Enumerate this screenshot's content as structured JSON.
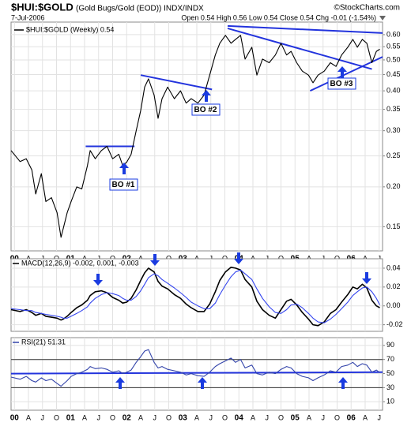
{
  "chart_data": [
    {
      "type": "line",
      "title": "$HUI:$GOLD",
      "subtitle": "(Gold Bugs/Gold (EOD)) INDX/INDX",
      "source": "©StockCharts.com",
      "date": "7-Jul-2006",
      "quote": "Open 0.54 High 0.56 Low 0.54 Close 0.54 Chg -0.01 (-1.54%)",
      "log_scale": true,
      "grid": true,
      "xlim": [
        1999.94,
        2006.56
      ],
      "ylim": [
        0.126,
        0.657
      ],
      "xticks": [
        {
          "value": 2000,
          "label": "00"
        },
        {
          "value": 2000.25,
          "label": "A"
        },
        {
          "value": 2000.5,
          "label": "J"
        },
        {
          "value": 2000.75,
          "label": "O"
        },
        {
          "value": 2001,
          "label": "01"
        },
        {
          "value": 2001.25,
          "label": "A"
        },
        {
          "value": 2001.5,
          "label": "J"
        },
        {
          "value": 2001.75,
          "label": "O"
        },
        {
          "value": 2002,
          "label": "02"
        },
        {
          "value": 2002.25,
          "label": "A"
        },
        {
          "value": 2002.5,
          "label": "J"
        },
        {
          "value": 2002.75,
          "label": "O"
        },
        {
          "value": 2003,
          "label": "03"
        },
        {
          "value": 2003.25,
          "label": "A"
        },
        {
          "value": 2003.5,
          "label": "J"
        },
        {
          "value": 2003.75,
          "label": "O"
        },
        {
          "value": 2004,
          "label": "04"
        },
        {
          "value": 2004.25,
          "label": "A"
        },
        {
          "value": 2004.5,
          "label": "J"
        },
        {
          "value": 2004.75,
          "label": "O"
        },
        {
          "value": 2005,
          "label": "05"
        },
        {
          "value": 2005.25,
          "label": "A"
        },
        {
          "value": 2005.5,
          "label": "J"
        },
        {
          "value": 2005.75,
          "label": "O"
        },
        {
          "value": 2006,
          "label": "06"
        },
        {
          "value": 2006.25,
          "label": "A"
        },
        {
          "value": 2006.5,
          "label": "J"
        }
      ],
      "yticks": [
        {
          "value": 0.6,
          "label": "0.60"
        },
        0.55,
        {
          "value": 0.5,
          "label": "0.50"
        },
        0.45,
        {
          "value": 0.4,
          "label": "0.40"
        },
        0.35,
        {
          "value": 0.3,
          "label": "0.30"
        },
        0.25,
        {
          "value": 0.2,
          "label": "0.20"
        },
        0.15
      ],
      "x": [
        1999.94,
        2000.1,
        2000.21,
        2000.31,
        2000.38,
        2000.48,
        2000.56,
        2000.66,
        2000.76,
        2000.83,
        2000.87,
        2000.94,
        2001.01,
        2001.11,
        2001.2,
        2001.3,
        2001.35,
        2001.44,
        2001.55,
        2001.65,
        2001.75,
        2001.86,
        2001.93,
        2002.0,
        2002.08,
        2002.17,
        2002.25,
        2002.32,
        2002.39,
        2002.49,
        2002.56,
        2002.63,
        2002.73,
        2002.85,
        2002.96,
        2003.06,
        2003.15,
        2003.27,
        2003.38,
        2003.48,
        2003.58,
        2003.66,
        2003.76,
        2003.86,
        2003.94,
        2004.03,
        2004.11,
        2004.23,
        2004.32,
        2004.42,
        2004.54,
        2004.65,
        2004.75,
        2004.85,
        2004.93,
        2005.03,
        2005.13,
        2005.24,
        2005.32,
        2005.41,
        2005.52,
        2005.63,
        2005.73,
        2005.83,
        2005.94,
        2006.03,
        2006.11,
        2006.2,
        2006.28,
        2006.37,
        2006.45,
        2006.51
      ],
      "series": [
        {
          "name": "$HUI:$GOLD (Weekly) 0.54",
          "color": "#000000",
          "values": [
            0.26,
            0.24,
            0.245,
            0.226,
            0.19,
            0.22,
            0.18,
            0.185,
            0.166,
            0.139,
            0.148,
            0.166,
            0.18,
            0.2,
            0.197,
            0.233,
            0.26,
            0.245,
            0.26,
            0.268,
            0.245,
            0.253,
            0.233,
            0.239,
            0.253,
            0.3,
            0.347,
            0.411,
            0.436,
            0.388,
            0.328,
            0.378,
            0.411,
            0.378,
            0.4,
            0.366,
            0.378,
            0.366,
            0.388,
            0.448,
            0.518,
            0.564,
            0.597,
            0.564,
            0.58,
            0.597,
            0.503,
            0.548,
            0.448,
            0.503,
            0.49,
            0.518,
            0.564,
            0.518,
            0.532,
            0.49,
            0.461,
            0.448,
            0.424,
            0.448,
            0.461,
            0.49,
            0.477,
            0.518,
            0.548,
            0.58,
            0.548,
            0.58,
            0.564,
            0.49,
            0.532,
            0.54
          ]
        }
      ],
      "trendlines": [
        {
          "color": "#2233dd",
          "x": [
            2001.27,
            2002.14
          ],
          "y": [
            0.268,
            0.268
          ]
        },
        {
          "color": "#2233dd",
          "x": [
            2002.25,
            2003.52
          ],
          "y": [
            0.448,
            0.404
          ]
        },
        {
          "color": "#2233dd",
          "x": [
            2003.8,
            2006.56
          ],
          "y": [
            0.639,
            0.607
          ]
        },
        {
          "color": "#2233dd",
          "x": [
            2003.8,
            2006.37
          ],
          "y": [
            0.628,
            0.468
          ]
        },
        {
          "color": "#2233dd",
          "x": [
            2005.27,
            2006.56
          ],
          "y": [
            0.4,
            0.511
          ]
        }
      ],
      "annotations": [
        "BO #1",
        "BO #2",
        "BO #3"
      ]
    },
    {
      "type": "line",
      "title": "MACD(12,26,9) -0.002, 0.001, -0.003",
      "grid": true,
      "xlim": [
        1999.94,
        2006.56
      ],
      "ylim": [
        -0.027,
        0.05
      ],
      "yticks": [
        0.04,
        0.02,
        {
          "value": 0,
          "label": "0.00"
        },
        -0.02
      ],
      "x": [
        1999.94,
        2000.1,
        2000.21,
        2000.31,
        2000.38,
        2000.48,
        2000.56,
        2000.66,
        2000.76,
        2000.83,
        2000.87,
        2000.94,
        2001.01,
        2001.11,
        2001.2,
        2001.3,
        2001.35,
        2001.44,
        2001.55,
        2001.65,
        2001.75,
        2001.86,
        2001.93,
        2002.0,
        2002.08,
        2002.17,
        2002.25,
        2002.32,
        2002.39,
        2002.49,
        2002.56,
        2002.63,
        2002.73,
        2002.85,
        2002.96,
        2003.06,
        2003.15,
        2003.27,
        2003.38,
        2003.48,
        2003.58,
        2003.66,
        2003.76,
        2003.86,
        2003.94,
        2004.03,
        2004.11,
        2004.23,
        2004.32,
        2004.42,
        2004.54,
        2004.65,
        2004.75,
        2004.85,
        2004.93,
        2005.03,
        2005.13,
        2005.24,
        2005.32,
        2005.41,
        2005.52,
        2005.63,
        2005.73,
        2005.83,
        2005.94,
        2006.03,
        2006.11,
        2006.2,
        2006.28,
        2006.37,
        2006.45,
        2006.51
      ],
      "series": [
        {
          "color": "#000000",
          "values": [
            -0.004,
            -0.006,
            -0.004,
            -0.007,
            -0.01,
            -0.008,
            -0.011,
            -0.012,
            -0.013,
            -0.015,
            -0.014,
            -0.011,
            -0.007,
            -0.002,
            0.001,
            0.006,
            0.011,
            0.015,
            0.016,
            0.014,
            0.009,
            0.006,
            0.003,
            0.004,
            0.008,
            0.017,
            0.027,
            0.035,
            0.04,
            0.036,
            0.026,
            0.021,
            0.018,
            0.012,
            0.008,
            0.002,
            -0.002,
            -0.006,
            -0.006,
            0.002,
            0.015,
            0.027,
            0.036,
            0.041,
            0.04,
            0.038,
            0.028,
            0.02,
            0.005,
            -0.004,
            -0.01,
            -0.013,
            -0.004,
            0.005,
            0.007,
            0.001,
            -0.007,
            -0.014,
            -0.02,
            -0.021,
            -0.017,
            -0.008,
            -0.004,
            0.004,
            0.012,
            0.02,
            0.018,
            0.023,
            0.019,
            0.006,
            0,
            -0.002
          ]
        },
        {
          "color": "#3344ee",
          "values": [
            -0.003,
            -0.004,
            -0.005,
            -0.005,
            -0.007,
            -0.008,
            -0.009,
            -0.01,
            -0.011,
            -0.012,
            -0.013,
            -0.013,
            -0.011,
            -0.008,
            -0.005,
            -0.001,
            0.003,
            0.008,
            0.012,
            0.014,
            0.013,
            0.011,
            0.008,
            0.006,
            0.006,
            0.01,
            0.016,
            0.023,
            0.03,
            0.034,
            0.032,
            0.028,
            0.024,
            0.019,
            0.014,
            0.009,
            0.004,
            0,
            -0.003,
            -0.003,
            0.003,
            0.012,
            0.022,
            0.031,
            0.036,
            0.038,
            0.034,
            0.028,
            0.018,
            0.008,
            -0.001,
            -0.007,
            -0.008,
            -0.004,
            0.001,
            0.002,
            -0.002,
            -0.008,
            -0.013,
            -0.017,
            -0.018,
            -0.014,
            -0.009,
            -0.003,
            0.004,
            0.011,
            0.015,
            0.019,
            0.02,
            0.015,
            0.008,
            0.001
          ]
        }
      ]
    },
    {
      "type": "line",
      "title": "RSI(21) 51.31",
      "grid": true,
      "xlim": [
        1999.94,
        2006.56
      ],
      "ylim": [
        -2,
        101
      ],
      "xticks": [
        {
          "value": 2000,
          "label": "00"
        },
        {
          "value": 2000.25,
          "label": "A"
        },
        {
          "value": 2000.5,
          "label": "J"
        },
        {
          "value": 2000.75,
          "label": "O"
        },
        {
          "value": 2001,
          "label": "01"
        },
        {
          "value": 2001.25,
          "label": "A"
        },
        {
          "value": 2001.5,
          "label": "J"
        },
        {
          "value": 2001.75,
          "label": "O"
        },
        {
          "value": 2002,
          "label": "02"
        },
        {
          "value": 2002.25,
          "label": "A"
        },
        {
          "value": 2002.5,
          "label": "J"
        },
        {
          "value": 2002.75,
          "label": "O"
        },
        {
          "value": 2003,
          "label": "03"
        },
        {
          "value": 2003.25,
          "label": "A"
        },
        {
          "value": 2003.5,
          "label": "J"
        },
        {
          "value": 2003.75,
          "label": "O"
        },
        {
          "value": 2004,
          "label": "04"
        },
        {
          "value": 2004.25,
          "label": "A"
        },
        {
          "value": 2004.5,
          "label": "J"
        },
        {
          "value": 2004.75,
          "label": "O"
        },
        {
          "value": 2005,
          "label": "05"
        },
        {
          "value": 2005.25,
          "label": "A"
        },
        {
          "value": 2005.5,
          "label": "J"
        },
        {
          "value": 2005.75,
          "label": "O"
        },
        {
          "value": 2006,
          "label": "06"
        },
        {
          "value": 2006.25,
          "label": "A"
        },
        {
          "value": 2006.5,
          "label": "J"
        }
      ],
      "yticks": [
        90,
        70,
        50,
        30,
        10
      ],
      "levels": [
        70,
        30
      ],
      "x": [
        1999.94,
        2000.1,
        2000.21,
        2000.31,
        2000.38,
        2000.48,
        2000.56,
        2000.66,
        2000.76,
        2000.83,
        2000.87,
        2000.94,
        2001.01,
        2001.11,
        2001.2,
        2001.3,
        2001.35,
        2001.44,
        2001.55,
        2001.65,
        2001.75,
        2001.86,
        2001.93,
        2002.0,
        2002.08,
        2002.17,
        2002.25,
        2002.32,
        2002.39,
        2002.49,
        2002.56,
        2002.63,
        2002.73,
        2002.85,
        2002.96,
        2003.06,
        2003.15,
        2003.27,
        2003.38,
        2003.48,
        2003.58,
        2003.66,
        2003.76,
        2003.86,
        2003.94,
        2004.03,
        2004.11,
        2004.23,
        2004.32,
        2004.42,
        2004.54,
        2004.65,
        2004.75,
        2004.85,
        2004.93,
        2005.03,
        2005.13,
        2005.24,
        2005.32,
        2005.41,
        2005.52,
        2005.63,
        2005.73,
        2005.83,
        2005.94,
        2006.03,
        2006.11,
        2006.2,
        2006.28,
        2006.37,
        2006.45,
        2006.51
      ],
      "series": [
        {
          "color": "#3344aa",
          "values": [
            45,
            42,
            46,
            40,
            38,
            44,
            40,
            42,
            36,
            32,
            35,
            40,
            46,
            50,
            52,
            56,
            60,
            57,
            58,
            56,
            52,
            54,
            50,
            52,
            55,
            66,
            74,
            82,
            84,
            66,
            58,
            60,
            56,
            54,
            52,
            48,
            50,
            47,
            46,
            52,
            60,
            64,
            68,
            72,
            66,
            70,
            58,
            62,
            50,
            48,
            52,
            50,
            56,
            60,
            58,
            50,
            46,
            44,
            40,
            44,
            48,
            54,
            52,
            60,
            62,
            66,
            60,
            64,
            62,
            52,
            55,
            51.31
          ]
        }
      ],
      "trendlines": [
        {
          "color": "#2233dd",
          "x": [
            1999.94,
            2006.56
          ],
          "y": [
            50,
            52
          ]
        }
      ]
    }
  ]
}
